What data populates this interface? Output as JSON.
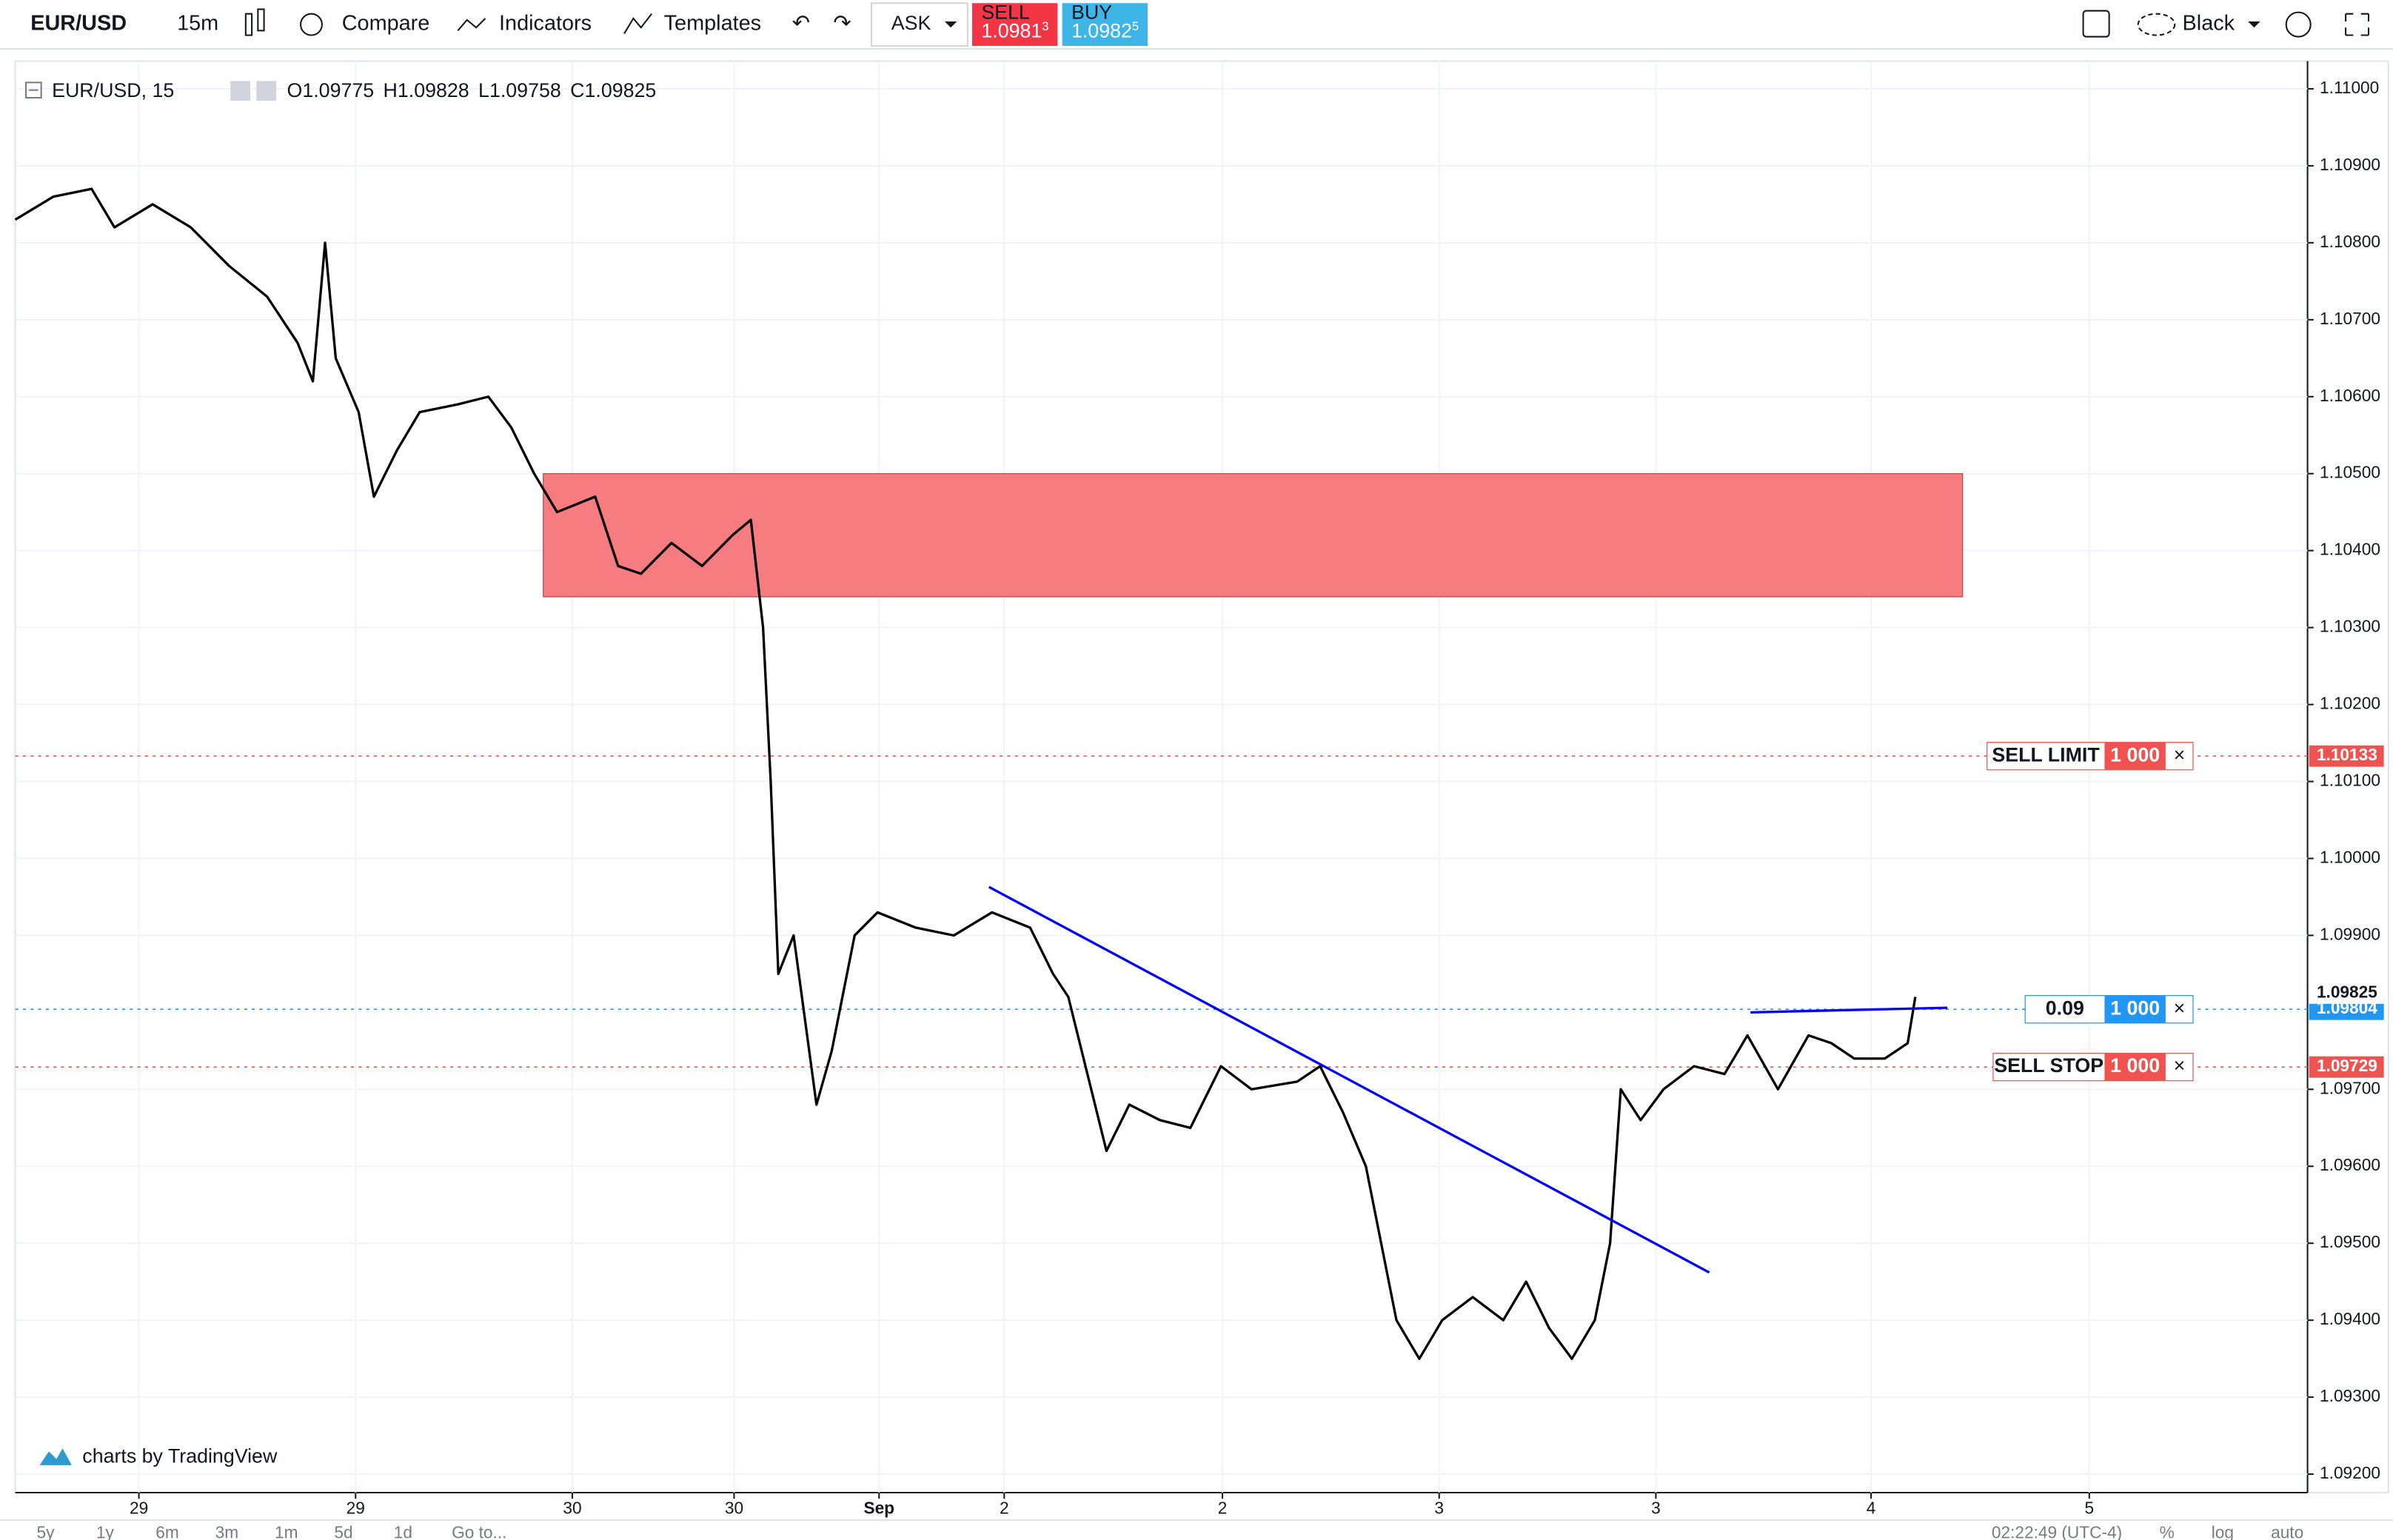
{
  "toolbar": {
    "symbol": "EUR/USD",
    "interval": "15m",
    "compare": "Compare",
    "indicators": "Indicators",
    "templates": "Templates",
    "ask": "ASK",
    "sell_label": "SELL",
    "sell_price": "1.0981",
    "sell_sup": "3",
    "buy_label": "BUY",
    "buy_price": "1.0982",
    "buy_sup": "5",
    "theme": "Black"
  },
  "legend": {
    "symbol": "EUR/USD, 15",
    "o_label": "O",
    "o": "1.09775",
    "h_label": "H",
    "h": "1.09828",
    "l_label": "L",
    "l": "1.09758",
    "c_label": "C",
    "c": "1.09825"
  },
  "watermark": "charts by TradingView",
  "bottom_bar": {
    "ranges": [
      "5y",
      "1y",
      "6m",
      "3m",
      "1m",
      "5d",
      "1d"
    ],
    "goto": "Go to...",
    "time": "02:22:49 (UTC-4)",
    "percent": "%",
    "log": "log",
    "auto": "auto"
  },
  "chart_data": {
    "type": "line",
    "xlim": [
      0,
      1500
    ],
    "xticks": [
      {
        "value": 81,
        "label": "29"
      },
      {
        "value": 223,
        "label": "29"
      },
      {
        "value": 365,
        "label": "30"
      },
      {
        "value": 471,
        "label": "30"
      },
      {
        "value": 566,
        "label": "Sep"
      },
      {
        "value": 648,
        "label": "2"
      },
      {
        "value": 791,
        "label": "2"
      },
      {
        "value": 933,
        "label": "3"
      },
      {
        "value": 1075,
        "label": "3"
      },
      {
        "value": 1216,
        "label": "4"
      },
      {
        "value": 1359,
        "label": "5"
      }
    ],
    "ylim": [
      1.09176,
      1.11036
    ],
    "yticks": [
      {
        "value": 1.11,
        "label": "1.11000"
      },
      {
        "value": 1.109,
        "label": "1.10900"
      },
      {
        "value": 1.108,
        "label": "1.10800"
      },
      {
        "value": 1.107,
        "label": "1.10700"
      },
      {
        "value": 1.106,
        "label": "1.10600"
      },
      {
        "value": 1.105,
        "label": "1.10500"
      },
      {
        "value": 1.104,
        "label": "1.10400"
      },
      {
        "value": 1.103,
        "label": "1.10300"
      },
      {
        "value": 1.102,
        "label": "1.10200"
      },
      {
        "value": 1.101,
        "label": "1.10100"
      },
      {
        "value": 1.1,
        "label": "1.10000"
      },
      {
        "value": 1.099,
        "label": "1.09900"
      },
      {
        "value": 1.097,
        "label": "1.09700"
      },
      {
        "value": 1.096,
        "label": "1.09600"
      },
      {
        "value": 1.095,
        "label": "1.09500"
      },
      {
        "value": 1.094,
        "label": "1.09400"
      },
      {
        "value": 1.093,
        "label": "1.09300"
      },
      {
        "value": 1.092,
        "label": "1.09200"
      }
    ],
    "grid": true,
    "series": [
      {
        "name": "EUR/USD",
        "color": "#000000",
        "x": [
          0,
          25,
          50,
          65,
          90,
          115,
          140,
          165,
          185,
          195,
          203,
          210,
          225,
          235,
          250,
          265,
          290,
          310,
          325,
          340,
          355,
          380,
          395,
          410,
          430,
          450,
          470,
          482,
          490,
          495,
          500,
          510,
          525,
          535,
          550,
          565,
          590,
          615,
          640,
          665,
          680,
          690,
          705,
          715,
          730,
          750,
          770,
          790,
          810,
          840,
          855,
          870,
          885,
          895,
          905,
          920,
          935,
          955,
          975,
          990,
          1005,
          1020,
          1035,
          1045,
          1052,
          1065,
          1080,
          1100,
          1120,
          1135,
          1155,
          1175,
          1190,
          1205,
          1225,
          1240,
          1245
        ],
        "values": [
          1.1083,
          1.1086,
          1.1087,
          1.1082,
          1.1085,
          1.1082,
          1.1077,
          1.1073,
          1.1067,
          1.1062,
          1.108,
          1.1065,
          1.1058,
          1.1047,
          1.1053,
          1.1058,
          1.1059,
          1.106,
          1.1056,
          1.105,
          1.1045,
          1.1047,
          1.1038,
          1.1037,
          1.1041,
          1.1038,
          1.1042,
          1.1044,
          1.103,
          1.101,
          1.0985,
          1.099,
          1.0968,
          1.0975,
          1.099,
          1.0993,
          1.0991,
          1.099,
          1.0993,
          1.0991,
          1.0985,
          1.0982,
          1.097,
          1.0962,
          1.0968,
          1.0966,
          1.0965,
          1.0973,
          1.097,
          1.0971,
          1.0973,
          1.0967,
          1.096,
          1.095,
          1.094,
          1.0935,
          1.094,
          1.0943,
          1.094,
          1.0945,
          1.0939,
          1.0935,
          1.094,
          1.095,
          1.097,
          1.0966,
          1.097,
          1.0973,
          1.0972,
          1.0977,
          1.097,
          1.0977,
          1.0976,
          1.0974,
          1.0974,
          1.0976,
          1.0982
        ]
      }
    ],
    "zone": {
      "x": [
        346,
        1276
      ],
      "y": [
        1.1034,
        1.105
      ],
      "color": "#f77c80"
    },
    "trendlines": [
      {
        "x": [
          638,
          1110
        ],
        "y": [
          1.09963,
          1.09462
        ],
        "color": "#0000ff"
      },
      {
        "x": [
          1137,
          1266
        ],
        "y": [
          1.098,
          1.09806
        ],
        "color": "#0000ff"
      }
    ],
    "price_lines": [
      {
        "value": 1.10133,
        "color": "#ef5350"
      },
      {
        "value": 1.09804,
        "color": "#2196f3"
      },
      {
        "value": 1.09729,
        "color": "#ef5350"
      }
    ],
    "last_price": 1.09825,
    "orders": [
      {
        "label": "SELL LIMIT",
        "qty": "1 000",
        "color": "#ef5350"
      },
      {
        "label": "0.09",
        "qty": "1 000",
        "color": "#2196f3"
      },
      {
        "label": "SELL STOP",
        "qty": "1 000",
        "color": "#ef5350"
      }
    ]
  }
}
